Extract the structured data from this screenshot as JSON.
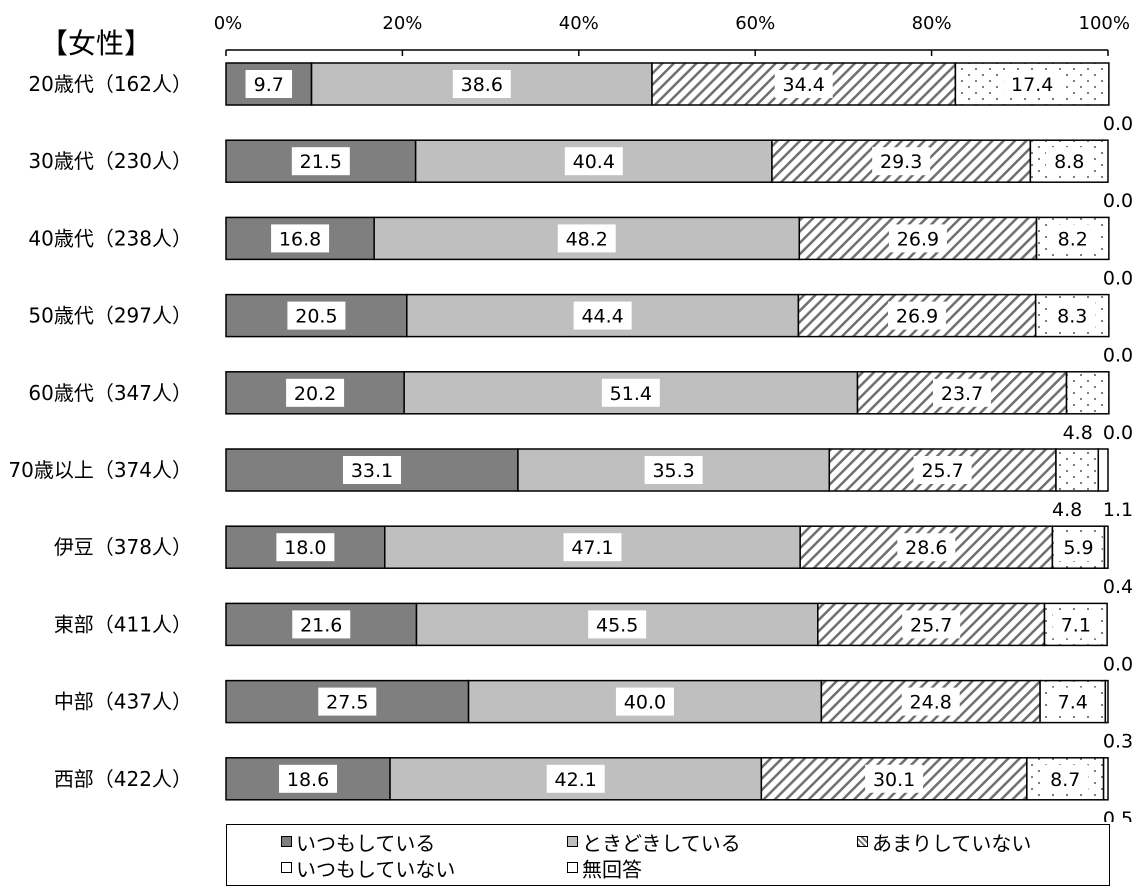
{
  "chart_data": {
    "type": "bar",
    "orientation": "horizontal-stacked-100",
    "title": "【女性】",
    "x_ticks": [
      "0%",
      "20%",
      "40%",
      "60%",
      "80%",
      "100%"
    ],
    "xlim": [
      0,
      100
    ],
    "grid": false,
    "legend_position": "bottom",
    "categories": [
      "20歳代（162人）",
      "30歳代（230人）",
      "40歳代（238人）",
      "50歳代（297人）",
      "60歳代（347人）",
      "70歳以上（374人）",
      "伊豆（378人）",
      "東部（411人）",
      "中部（437人）",
      "西部（422人）"
    ],
    "series": [
      {
        "name": "いつもしている",
        "values": [
          9.7,
          21.5,
          16.8,
          20.5,
          20.2,
          33.1,
          18.0,
          21.6,
          27.5,
          18.6
        ],
        "labels": [
          "9.7",
          "21.5",
          "16.8",
          "20.5",
          "20.2",
          "33.1",
          "18.0",
          "21.6",
          "27.5",
          "18.6"
        ]
      },
      {
        "name": "ときどきしている",
        "values": [
          38.6,
          40.4,
          48.2,
          44.4,
          51.4,
          35.3,
          47.1,
          45.5,
          40.0,
          42.1
        ],
        "labels": [
          "38.6",
          "40.4",
          "48.2",
          "44.4",
          "51.4",
          "35.3",
          "47.1",
          "45.5",
          "40.0",
          "42.1"
        ]
      },
      {
        "name": "あまりしていない",
        "values": [
          34.4,
          29.3,
          26.9,
          26.9,
          23.7,
          25.7,
          28.6,
          25.7,
          24.8,
          30.1
        ],
        "labels": [
          "34.4",
          "29.3",
          "26.9",
          "26.9",
          "23.7",
          "25.7",
          "28.6",
          "25.7",
          "24.8",
          "30.1"
        ]
      },
      {
        "name": "いつもしていない",
        "values": [
          17.4,
          8.8,
          8.2,
          8.3,
          4.8,
          4.8,
          5.9,
          7.1,
          7.4,
          8.7
        ],
        "labels": [
          "17.4",
          "8.8",
          "8.2",
          "8.3",
          "4.8",
          "4.8",
          "5.9",
          "7.1",
          "7.4",
          "8.7"
        ]
      },
      {
        "name": "無回答",
        "values": [
          0.0,
          0.0,
          0.0,
          0.0,
          0.0,
          1.1,
          0.4,
          0.0,
          0.3,
          0.5
        ],
        "labels": [
          "0.0",
          "0.0",
          "0.0",
          "0.0",
          "0.0",
          "1.1",
          "0.4",
          "0.0",
          "0.3",
          "0.5"
        ]
      }
    ]
  },
  "colors": {
    "series_fills": [
      "#7f7f7f",
      "#bfbfbf",
      "hatch",
      "dots",
      "#ffffff"
    ],
    "hatch_stroke": "#707070",
    "border": "#000000"
  }
}
